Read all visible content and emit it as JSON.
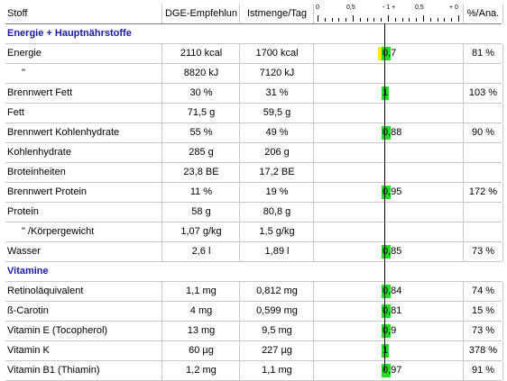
{
  "columns": {
    "name": "Stoff",
    "dge": "DGE-Empfehlun",
    "ist": "Istmenge/Tag",
    "pct": "%/Ana.",
    "scale_labels": [
      "0",
      "0,5",
      "- 1 +",
      "0,5",
      "+ 0"
    ]
  },
  "rows": [
    {
      "type": "section",
      "name": "Energie + Hauptnährstoffe"
    },
    {
      "type": "data",
      "name": "Energie",
      "dge": "2110 kcal",
      "ist": "1700 kcal",
      "ratio": "0,7",
      "ratio_value": 0.7,
      "low": true,
      "pct": "81 %"
    },
    {
      "type": "data",
      "name": "\"",
      "indent": true,
      "dge": "8820 kJ",
      "ist": "7120 kJ",
      "ratio": "",
      "pct": ""
    },
    {
      "type": "data",
      "name": "Brennwert Fett",
      "dge": "30 %",
      "ist": "31 %",
      "ratio": "1",
      "ratio_value": 1.0,
      "pct": "103 %"
    },
    {
      "type": "data",
      "name": "Fett",
      "dge": "71,5 g",
      "ist": "59,5 g",
      "ratio": "",
      "pct": ""
    },
    {
      "type": "data",
      "name": "Brennwert Kohlenhydrate",
      "dge": "55 %",
      "ist": "49 %",
      "ratio": "0,88",
      "ratio_value": 0.88,
      "pct": "90 %"
    },
    {
      "type": "data",
      "name": "Kohlenhydrate",
      "dge": "285 g",
      "ist": "206 g",
      "ratio": "",
      "pct": ""
    },
    {
      "type": "data",
      "name": "Broteinheiten",
      "dge": "23,8 BE",
      "ist": "17,2 BE",
      "ratio": "",
      "pct": ""
    },
    {
      "type": "data",
      "name": "Brennwert Protein",
      "dge": "11 %",
      "ist": "19 %",
      "ratio": "0,95",
      "ratio_value": 0.95,
      "pct": "172 %"
    },
    {
      "type": "data",
      "name": "Protein",
      "dge": "58 g",
      "ist": "80,8 g",
      "ratio": "",
      "pct": ""
    },
    {
      "type": "data",
      "name": "\"    /Körpergewicht",
      "indent": true,
      "dge": "1,07 g/kg",
      "ist": "1,5 g/kg",
      "ratio": "",
      "pct": ""
    },
    {
      "type": "data",
      "name": "Wasser",
      "dge": "2,6 l",
      "ist": "1,89 l",
      "ratio": "0,85",
      "ratio_value": 0.85,
      "pct": "73 %"
    },
    {
      "type": "section",
      "name": "Vitamine"
    },
    {
      "type": "data",
      "name": "Retinoläquivalent",
      "dge": "1,1 mg",
      "ist": "0,812 mg",
      "ratio": "0,84",
      "ratio_value": 0.84,
      "pct": "74 %"
    },
    {
      "type": "data",
      "name": "ß-Carotin",
      "dge": "4 mg",
      "ist": "0,599 mg",
      "ratio": "0,81",
      "ratio_value": 0.81,
      "pct": "15 %"
    },
    {
      "type": "data",
      "name": "Vitamin E (Tocopherol)",
      "dge": "13 mg",
      "ist": "9,5 mg",
      "ratio": "0,9",
      "ratio_value": 0.9,
      "pct": "73 %"
    },
    {
      "type": "data",
      "name": "Vitamin K",
      "dge": "60 µg",
      "ist": "227 µg",
      "ratio": "1",
      "ratio_value": 1.0,
      "pct": "378 %"
    },
    {
      "type": "data",
      "name": "Vitamin B1 (Thiamin)",
      "dge": "1,2 mg",
      "ist": "1,1 mg",
      "ratio": "0,97",
      "ratio_value": 0.97,
      "pct": "91 %"
    }
  ],
  "colors": {
    "section_text": "#1a1aa8",
    "bar_green": "#22dd22",
    "bar_yellow": "#ffee00"
  }
}
